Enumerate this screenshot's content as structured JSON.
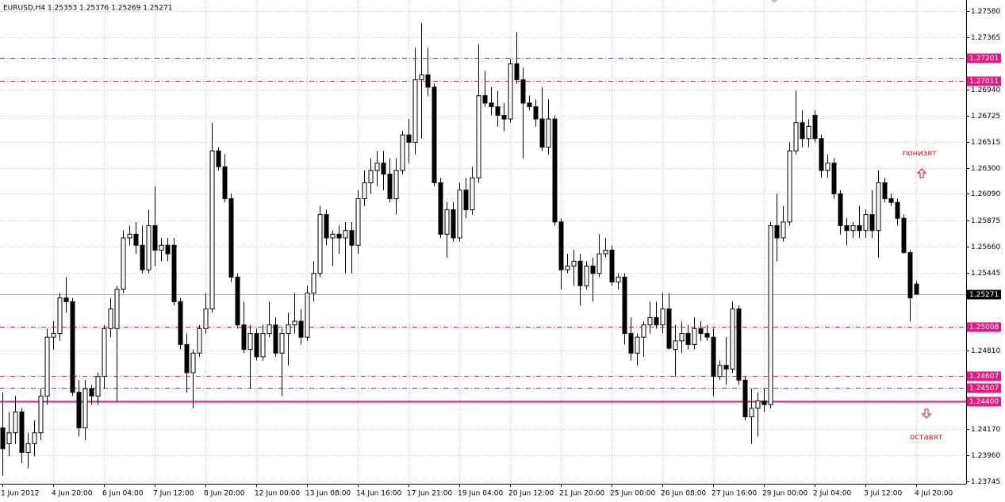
{
  "chart_data": {
    "type": "candlestick",
    "title": "EURUSD,H4  1.25353 1.25376 1.25269 1.25271",
    "categories": [
      "1 Jun 2012",
      null,
      null,
      null,
      null,
      null,
      null,
      null,
      "4 Jun 20:00",
      null,
      null,
      null,
      null,
      null,
      null,
      null,
      "6 Jun 04:00",
      null,
      null,
      null,
      null,
      null,
      null,
      null,
      "7 Jun 12:00",
      null,
      null,
      null,
      null,
      null,
      null,
      null,
      "8 Jun 20:00",
      null,
      null,
      null,
      null,
      null,
      null,
      null,
      "12 Jun 00:00",
      null,
      null,
      null,
      null,
      null,
      null,
      null,
      "13 Jun 08:00",
      null,
      null,
      null,
      null,
      null,
      null,
      null,
      "14 Jun 16:00",
      null,
      null,
      null,
      null,
      null,
      null,
      null,
      "17 Jun 21:00",
      null,
      null,
      null,
      null,
      null,
      null,
      null,
      "19 Jun 04:00",
      null,
      null,
      null,
      null,
      null,
      null,
      null,
      "20 Jun 12:00",
      null,
      null,
      null,
      null,
      null,
      null,
      null,
      "21 Jun 20:00",
      null,
      null,
      null,
      null,
      null,
      null,
      null,
      "25 Jun 00:00",
      null,
      null,
      null,
      null,
      null,
      null,
      null,
      "26 Jun 08:00",
      null,
      null,
      null,
      null,
      null,
      null,
      null,
      "27 Jun 16:00",
      null,
      null,
      null,
      null,
      null,
      null,
      null,
      "29 Jun 00:00",
      null,
      null,
      null,
      null,
      null,
      null,
      null,
      "2 Jul 04:00",
      null,
      null,
      null,
      null,
      null,
      null,
      null,
      "3 Jul 12:00",
      null,
      null,
      null,
      null,
      null,
      null,
      null,
      "4 Jul 20:00"
    ],
    "ohlc": [
      [
        1.2418,
        1.2447,
        1.2379,
        1.2401
      ],
      [
        1.2405,
        1.2431,
        1.2395,
        1.2414
      ],
      [
        1.2414,
        1.2444,
        1.2405,
        1.2431
      ],
      [
        1.2431,
        1.2434,
        1.2389,
        1.2398
      ],
      [
        1.2398,
        1.2414,
        1.2385,
        1.2405
      ],
      [
        1.2405,
        1.2424,
        1.2395,
        1.2414
      ],
      [
        1.2414,
        1.245,
        1.2408,
        1.2444
      ],
      [
        1.2444,
        1.2499,
        1.2437,
        1.2492
      ],
      [
        1.2492,
        1.2505,
        1.2482,
        1.2495
      ],
      [
        1.2495,
        1.2528,
        1.2489,
        1.2524
      ],
      [
        1.2524,
        1.2541,
        1.2512,
        1.2521
      ],
      [
        1.2521,
        1.2524,
        1.2444,
        1.2447
      ],
      [
        1.2447,
        1.2457,
        1.2411,
        1.2418
      ],
      [
        1.2418,
        1.2457,
        1.2408,
        1.245
      ],
      [
        1.245,
        1.2453,
        1.2437,
        1.2444
      ],
      [
        1.2444,
        1.2463,
        1.2437,
        1.246
      ],
      [
        1.246,
        1.2502,
        1.245,
        1.2499
      ],
      [
        1.2499,
        1.2524,
        1.2492,
        1.2515
      ],
      [
        1.2499,
        1.2534,
        1.244,
        1.2531
      ],
      [
        1.2531,
        1.2579,
        1.2528,
        1.2573
      ],
      [
        1.2573,
        1.2583,
        1.2567,
        1.2576
      ],
      [
        1.2576,
        1.2586,
        1.256,
        1.2567
      ],
      [
        1.2567,
        1.2583,
        1.2544,
        1.2547
      ],
      [
        1.2547,
        1.2596,
        1.2544,
        1.2583
      ],
      [
        1.2583,
        1.2615,
        1.255,
        1.2563
      ],
      [
        1.2563,
        1.2573,
        1.2554,
        1.2567
      ],
      [
        1.2567,
        1.2573,
        1.2554,
        1.256
      ],
      [
        1.2567,
        1.2573,
        1.2518,
        1.2521
      ],
      [
        1.2521,
        1.2524,
        1.2482,
        1.2486
      ],
      [
        1.2486,
        1.2495,
        1.2447,
        1.2463
      ],
      [
        1.2463,
        1.2482,
        1.2434,
        1.2479
      ],
      [
        1.2479,
        1.2502,
        1.2476,
        1.2499
      ],
      [
        1.2499,
        1.2528,
        1.2495,
        1.2515
      ],
      [
        1.2515,
        1.2667,
        1.2512,
        1.2644
      ],
      [
        1.2644,
        1.2647,
        1.2628,
        1.2631
      ],
      [
        1.2631,
        1.2641,
        1.2602,
        1.2605
      ],
      [
        1.2605,
        1.2609,
        1.2537,
        1.2541
      ],
      [
        1.2541,
        1.2544,
        1.2499,
        1.2502
      ],
      [
        1.2502,
        1.2521,
        1.2479,
        1.2482
      ],
      [
        1.2482,
        1.2502,
        1.245,
        1.2495
      ],
      [
        1.2495,
        1.2499,
        1.2473,
        1.2476
      ],
      [
        1.2476,
        1.2502,
        1.2473,
        1.2495
      ],
      [
        1.2495,
        1.2521,
        1.2492,
        1.2502
      ],
      [
        1.2502,
        1.2508,
        1.2476,
        1.2479
      ],
      [
        1.2479,
        1.2499,
        1.2444,
        1.2495
      ],
      [
        1.2495,
        1.2512,
        1.2469,
        1.2502
      ],
      [
        1.2502,
        1.2528,
        1.2495,
        1.2505
      ],
      [
        1.2505,
        1.2515,
        1.2486,
        1.2492
      ],
      [
        1.2492,
        1.2534,
        1.2489,
        1.2528
      ],
      [
        1.2528,
        1.2554,
        1.2521,
        1.2544
      ],
      [
        1.2544,
        1.2599,
        1.2541,
        1.2592
      ],
      [
        1.2592,
        1.2596,
        1.2567,
        1.2573
      ],
      [
        1.2573,
        1.2579,
        1.255,
        1.2576
      ],
      [
        1.2576,
        1.2583,
        1.256,
        1.2573
      ],
      [
        1.2573,
        1.2586,
        1.2544,
        1.2579
      ],
      [
        1.2579,
        1.2586,
        1.2544,
        1.2567
      ],
      [
        1.2567,
        1.2612,
        1.256,
        1.2605
      ],
      [
        1.2605,
        1.2628,
        1.2599,
        1.2618
      ],
      [
        1.2618,
        1.2638,
        1.2609,
        1.2628
      ],
      [
        1.2628,
        1.2644,
        1.2615,
        1.2634
      ],
      [
        1.2634,
        1.2644,
        1.2612,
        1.2625
      ],
      [
        1.2625,
        1.2638,
        1.2602,
        1.2605
      ],
      [
        1.2605,
        1.2638,
        1.2592,
        1.2628
      ],
      [
        1.2628,
        1.266,
        1.2625,
        1.2657
      ],
      [
        1.2657,
        1.267,
        1.2634,
        1.2651
      ],
      [
        1.2651,
        1.2728,
        1.2641,
        1.2702
      ],
      [
        1.2702,
        1.2748,
        1.2654,
        1.2706
      ],
      [
        1.2706,
        1.2728,
        1.2689,
        1.2696
      ],
      [
        1.2696,
        1.2699,
        1.2615,
        1.2618
      ],
      [
        1.2618,
        1.2622,
        1.2573,
        1.2576
      ],
      [
        1.2576,
        1.2602,
        1.2557,
        1.2596
      ],
      [
        1.2596,
        1.2602,
        1.257,
        1.2573
      ],
      [
        1.2573,
        1.2618,
        1.257,
        1.2612
      ],
      [
        1.2612,
        1.2622,
        1.2589,
        1.2596
      ],
      [
        1.2596,
        1.2631,
        1.2592,
        1.2622
      ],
      [
        1.2622,
        1.2731,
        1.2618,
        1.2689
      ],
      [
        1.2689,
        1.2709,
        1.268,
        1.2683
      ],
      [
        1.2683,
        1.2696,
        1.2673,
        1.268
      ],
      [
        1.268,
        1.2693,
        1.2664,
        1.2673
      ],
      [
        1.2673,
        1.2683,
        1.266,
        1.267
      ],
      [
        1.267,
        1.2719,
        1.2667,
        1.2715
      ],
      [
        1.2715,
        1.2741,
        1.2699,
        1.2702
      ],
      [
        1.2702,
        1.2712,
        1.2638,
        1.2683
      ],
      [
        1.2683,
        1.2689,
        1.2677,
        1.268
      ],
      [
        1.268,
        1.2686,
        1.2664,
        1.267
      ],
      [
        1.267,
        1.2696,
        1.2644,
        1.2647
      ],
      [
        1.2647,
        1.2686,
        1.2641,
        1.267
      ],
      [
        1.267,
        1.2673,
        1.2583,
        1.2586
      ],
      [
        1.2586,
        1.2589,
        1.2531,
        1.2547
      ],
      [
        1.2547,
        1.256,
        1.2544,
        1.255
      ],
      [
        1.255,
        1.2563,
        1.2534,
        1.2554
      ],
      [
        1.2554,
        1.256,
        1.2518,
        1.2534
      ],
      [
        1.2534,
        1.2554,
        1.2531,
        1.255
      ],
      [
        1.255,
        1.2557,
        1.2521,
        1.2544
      ],
      [
        1.2544,
        1.2576,
        1.2541,
        1.256
      ],
      [
        1.256,
        1.2573,
        1.2557,
        1.2563
      ],
      [
        1.2563,
        1.2567,
        1.2534,
        1.2537
      ],
      [
        1.2537,
        1.2544,
        1.2531,
        1.2541
      ],
      [
        1.2541,
        1.2544,
        1.2486,
        1.2495
      ],
      [
        1.2495,
        1.2508,
        1.2473,
        1.2479
      ],
      [
        1.2479,
        1.2495,
        1.2469,
        1.2492
      ],
      [
        1.2492,
        1.2505,
        1.2476,
        1.2502
      ],
      [
        1.2502,
        1.2521,
        1.2495,
        1.2508
      ],
      [
        1.2508,
        1.2521,
        1.2499,
        1.2502
      ],
      [
        1.2502,
        1.2528,
        1.2495,
        1.2515
      ],
      [
        1.2515,
        1.2528,
        1.2482,
        1.2483
      ],
      [
        1.2482,
        1.2502,
        1.246,
        1.2489
      ],
      [
        1.2489,
        1.2505,
        1.2479,
        1.2495
      ],
      [
        1.2495,
        1.2502,
        1.2482,
        1.2486
      ],
      [
        1.2486,
        1.2508,
        1.2482,
        1.2499
      ],
      [
        1.2499,
        1.2505,
        1.2489,
        1.2495
      ],
      [
        1.2495,
        1.2502,
        1.2489,
        1.2492
      ],
      [
        1.2492,
        1.2499,
        1.2444,
        1.246
      ],
      [
        1.246,
        1.2473,
        1.2457,
        1.2469
      ],
      [
        1.2469,
        1.2492,
        1.2453,
        1.2466
      ],
      [
        1.2466,
        1.2521,
        1.2463,
        1.2515
      ],
      [
        1.2515,
        1.2518,
        1.2453,
        1.2457
      ],
      [
        1.2457,
        1.246,
        1.2424,
        1.2427
      ],
      [
        1.2427,
        1.245,
        1.2405,
        1.2434
      ],
      [
        1.2434,
        1.2447,
        1.2411,
        1.244
      ],
      [
        1.244,
        1.245,
        1.2431,
        1.2437
      ],
      [
        1.2437,
        1.2586,
        1.2434,
        1.2583
      ],
      [
        1.2583,
        1.2609,
        1.2554,
        1.2573
      ],
      [
        1.2573,
        1.2599,
        1.257,
        1.2586
      ],
      [
        1.2586,
        1.2651,
        1.2583,
        1.2644
      ],
      [
        1.2644,
        1.2693,
        1.2641,
        1.2667
      ],
      [
        1.2667,
        1.2677,
        1.2647,
        1.2654
      ],
      [
        1.2654,
        1.267,
        1.2647,
        1.2664
      ],
      [
        1.2673,
        1.2677,
        1.2651,
        1.2654
      ],
      [
        1.2654,
        1.2657,
        1.2622,
        1.2628
      ],
      [
        1.2628,
        1.2641,
        1.2622,
        1.2634
      ],
      [
        1.2634,
        1.2638,
        1.2605,
        1.2609
      ],
      [
        1.2609,
        1.2612,
        1.2576,
        1.2583
      ],
      [
        1.2583,
        1.2589,
        1.2567,
        1.2579
      ],
      [
        1.2579,
        1.2586,
        1.2573,
        1.2583
      ],
      [
        1.2583,
        1.2599,
        1.2573,
        1.2579
      ],
      [
        1.2579,
        1.2596,
        1.2573,
        1.2592
      ],
      [
        1.2592,
        1.2612,
        1.2573,
        1.2579
      ],
      [
        1.2579,
        1.2628,
        1.2557,
        1.2618
      ],
      [
        1.2618,
        1.2622,
        1.2602,
        1.2605
      ],
      [
        1.2605,
        1.2609,
        1.2599,
        1.2602
      ],
      [
        1.2602,
        1.2605,
        1.2583,
        1.2589
      ],
      [
        1.2589,
        1.2592,
        1.256,
        1.2561
      ],
      [
        1.2561,
        1.2563,
        1.2505,
        1.2524
      ],
      [
        1.25353,
        1.25376,
        1.25269,
        1.25271
      ]
    ],
    "ylim": [
      1.23724,
      1.27671
    ],
    "yticks": [
      {
        "value": 1.2758,
        "label": "1.27580"
      },
      1.27365,
      {
        "value": 1.2694,
        "label": "1.26940"
      },
      1.26725,
      1.26515,
      {
        "value": 1.263,
        "label": "1.26300"
      },
      {
        "value": 1.2609,
        "label": "1.26090"
      },
      1.25875,
      {
        "value": 1.2566,
        "label": "1.25660"
      },
      1.25445,
      {
        "value": 1.2481,
        "label": "1.24810"
      },
      {
        "value": 1.2417,
        "label": "1.24170"
      },
      {
        "value": 1.2396,
        "label": "1.23960"
      },
      1.23745
    ],
    "levels": [
      1.27201,
      1.27011,
      1.25008,
      1.24607,
      1.24507,
      {
        "value": 1.244,
        "label": "1.24400"
      }
    ],
    "level_color": "#e8187e",
    "up_color": "#ffffff",
    "down_color": "#000000",
    "grid": true,
    "annotations": [
      {
        "text": "понизят"
      },
      {
        "text": "оставят"
      }
    ]
  }
}
